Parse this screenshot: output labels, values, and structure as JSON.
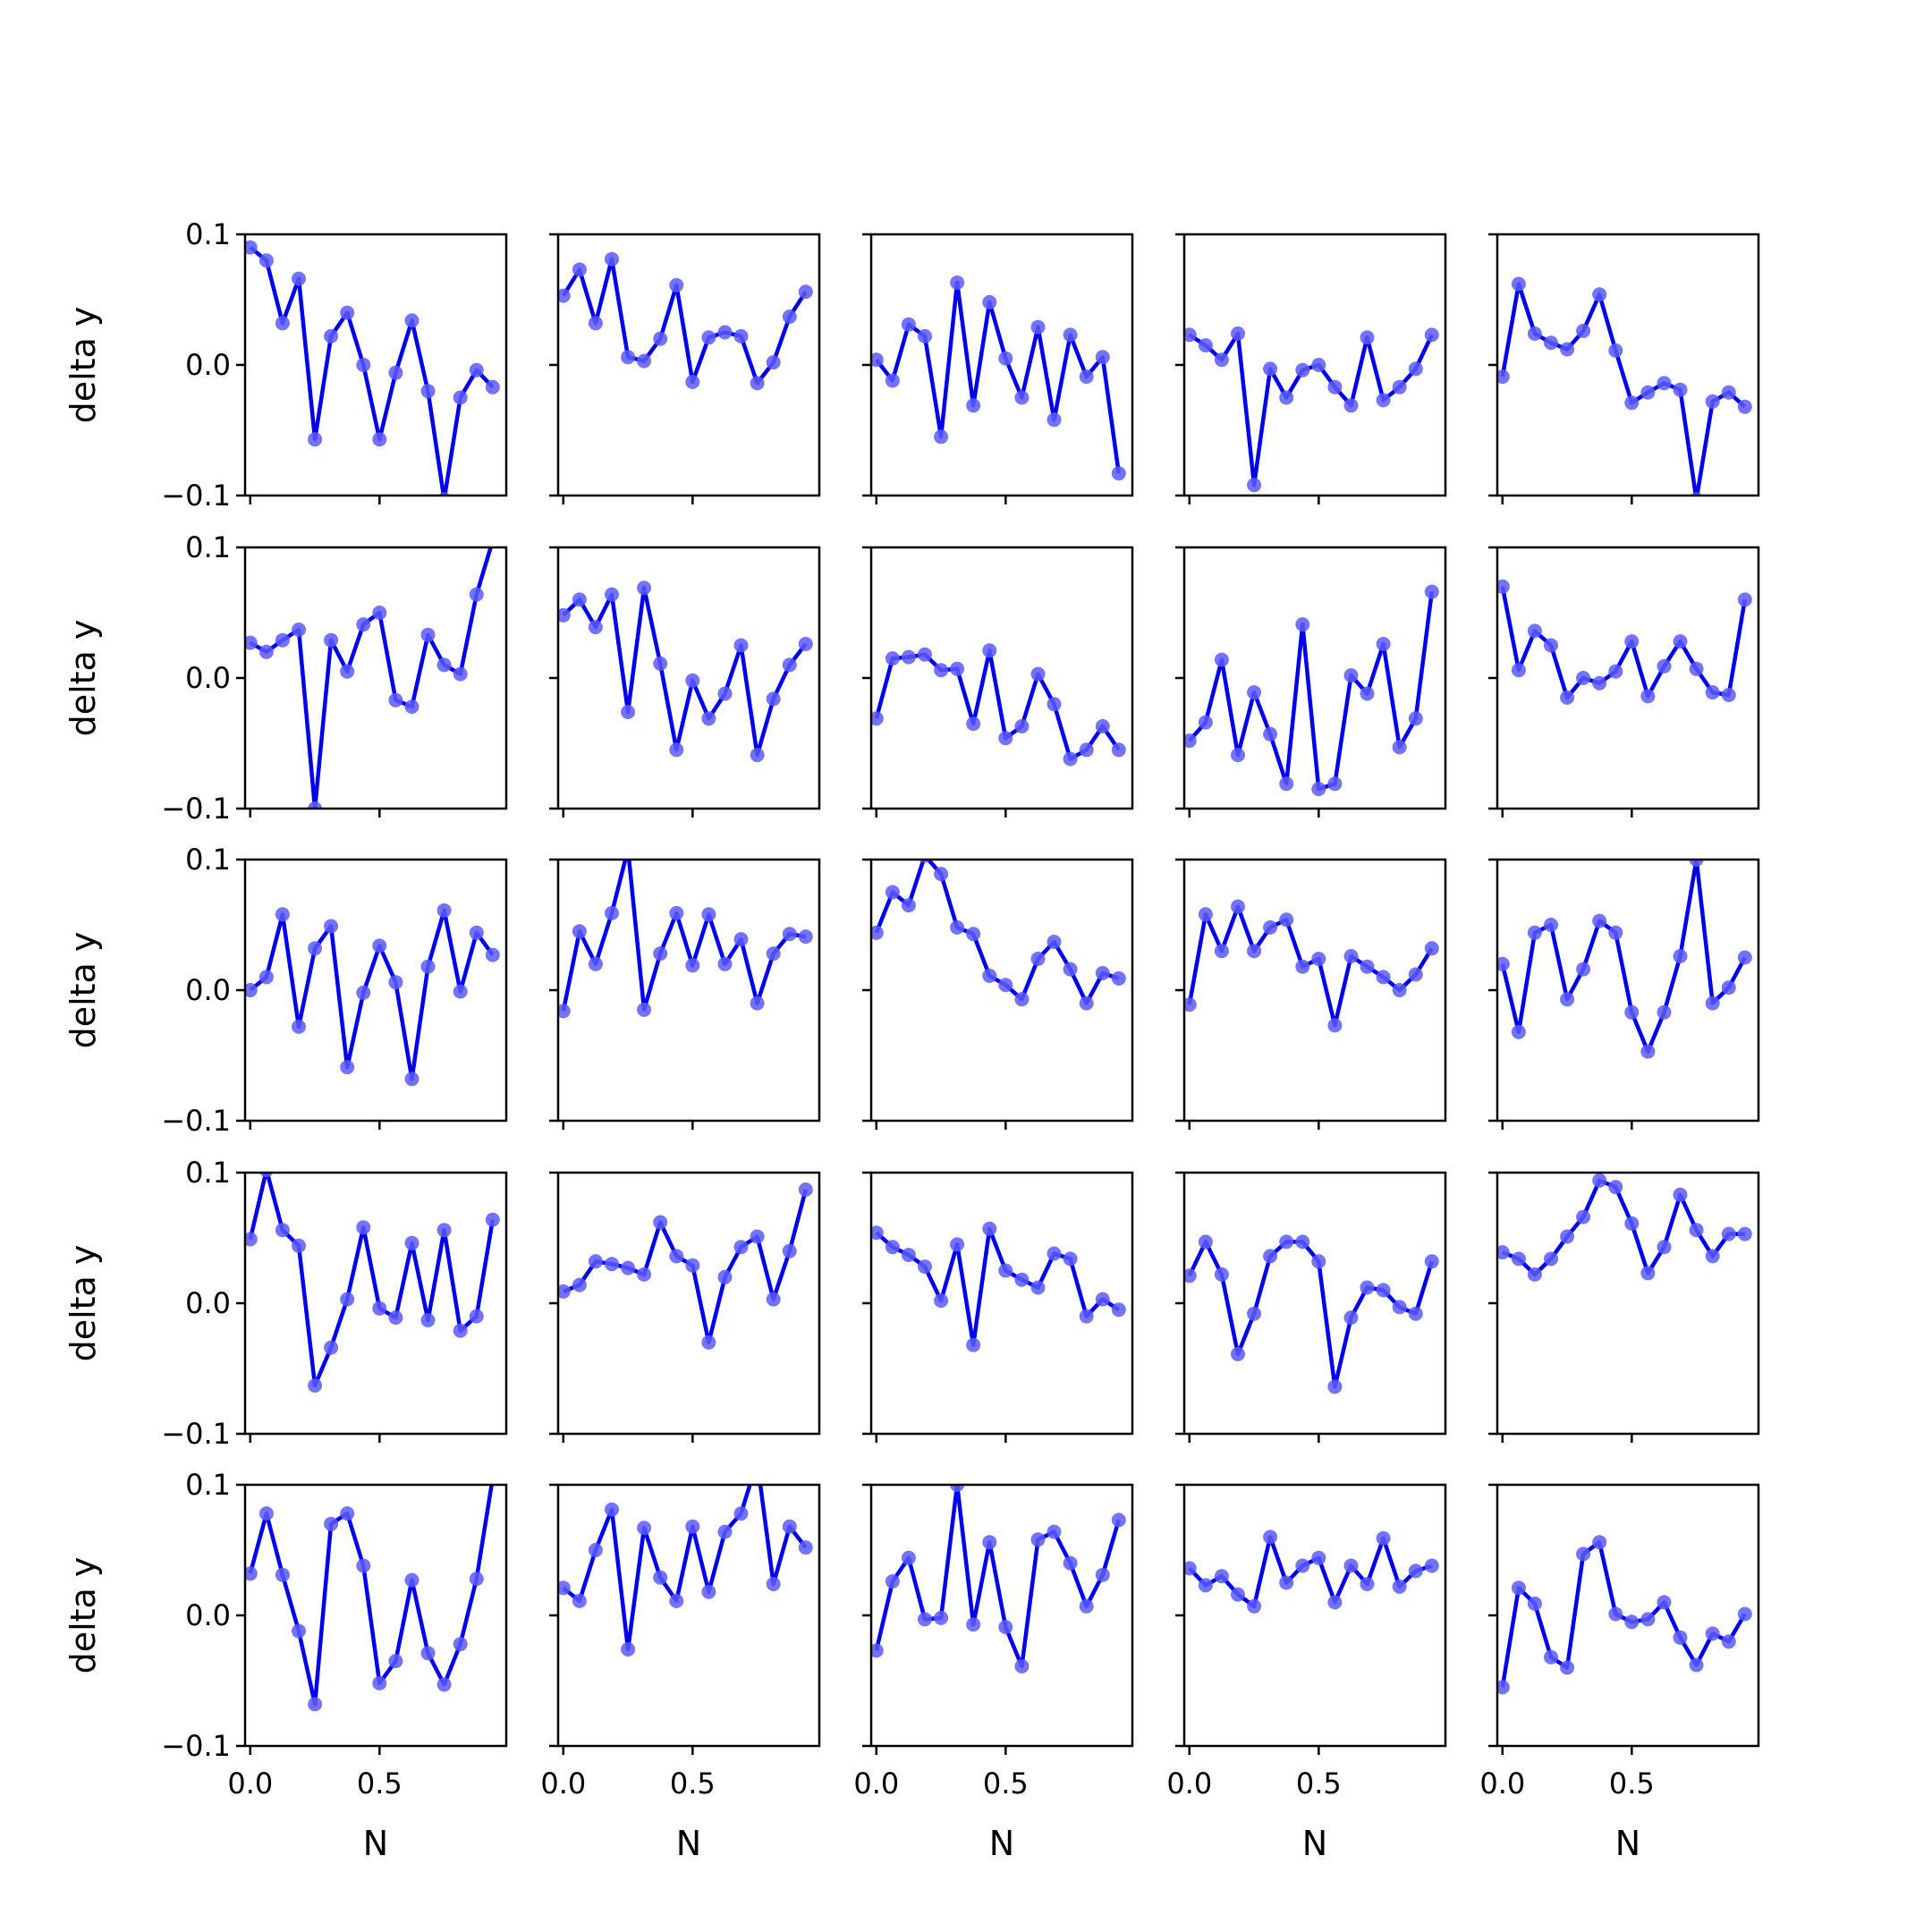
{
  "chart_data": {
    "type": "line",
    "layout": {
      "rows": 5,
      "cols": 5
    },
    "xlabel": "N",
    "ylabel": "delta y",
    "xlim": [
      -0.02,
      0.99
    ],
    "ylim": [
      -0.1,
      0.1
    ],
    "xticks": [
      0.0,
      0.5
    ],
    "xtick_labels": [
      "0.0",
      "0.5"
    ],
    "yticks": [
      -0.1,
      0.0,
      0.1
    ],
    "ytick_labels": [
      "−0.1",
      "0.0",
      "0.1"
    ],
    "grid": false,
    "line_color": "#0000ee",
    "marker_color": "#5a5aff",
    "x": [
      0.0,
      0.0625,
      0.125,
      0.1875,
      0.25,
      0.3125,
      0.375,
      0.4375,
      0.5,
      0.5625,
      0.625,
      0.6875,
      0.75,
      0.8125,
      0.875,
      0.9375
    ],
    "panels": [
      {
        "values": [
          0.09,
          0.08,
          0.032,
          0.066,
          -0.057,
          0.022,
          0.04,
          0.0,
          -0.057,
          -0.006,
          0.034,
          -0.02,
          -0.103,
          -0.025,
          -0.004,
          -0.017
        ]
      },
      {
        "values": [
          0.053,
          0.073,
          0.032,
          0.081,
          0.006,
          0.003,
          0.02,
          0.061,
          -0.013,
          0.021,
          0.025,
          0.022,
          -0.014,
          0.002,
          0.037,
          0.056
        ]
      },
      {
        "values": [
          0.004,
          -0.012,
          0.031,
          0.022,
          -0.055,
          0.063,
          -0.031,
          0.048,
          0.005,
          -0.025,
          0.029,
          -0.042,
          0.023,
          -0.009,
          0.006,
          -0.083
        ]
      },
      {
        "values": [
          0.023,
          0.015,
          0.004,
          0.024,
          -0.092,
          -0.003,
          -0.025,
          -0.004,
          0.0,
          -0.017,
          -0.031,
          0.021,
          -0.027,
          -0.017,
          -0.003,
          0.023
        ]
      },
      {
        "values": [
          -0.009,
          0.062,
          0.024,
          0.017,
          0.012,
          0.026,
          0.054,
          0.011,
          -0.029,
          -0.021,
          -0.014,
          -0.019,
          -0.103,
          -0.028,
          -0.021,
          -0.032
        ]
      },
      {
        "values": [
          0.027,
          0.02,
          0.029,
          0.037,
          -0.1,
          0.029,
          0.005,
          0.041,
          0.05,
          -0.017,
          -0.022,
          0.033,
          0.01,
          0.003,
          0.064,
          0.105
        ]
      },
      {
        "values": [
          0.048,
          0.06,
          0.039,
          0.064,
          -0.026,
          0.069,
          0.011,
          -0.055,
          -0.002,
          -0.031,
          -0.012,
          0.025,
          -0.059,
          -0.016,
          0.01,
          0.026
        ]
      },
      {
        "values": [
          -0.031,
          0.015,
          0.016,
          0.018,
          0.006,
          0.007,
          -0.035,
          0.021,
          -0.046,
          -0.037,
          0.003,
          -0.02,
          -0.062,
          -0.055,
          -0.037,
          -0.055
        ]
      },
      {
        "values": [
          -0.048,
          -0.034,
          0.014,
          -0.059,
          -0.011,
          -0.043,
          -0.081,
          0.041,
          -0.085,
          -0.081,
          0.002,
          -0.012,
          0.026,
          -0.053,
          -0.031,
          0.066
        ]
      },
      {
        "values": [
          0.07,
          0.006,
          0.036,
          0.025,
          -0.015,
          0.0,
          -0.004,
          0.005,
          0.028,
          -0.014,
          0.009,
          0.028,
          0.007,
          -0.011,
          -0.013,
          0.06
        ]
      },
      {
        "values": [
          0.0,
          0.01,
          0.058,
          -0.028,
          0.032,
          0.049,
          -0.059,
          -0.002,
          0.034,
          0.006,
          -0.068,
          0.018,
          0.061,
          -0.001,
          0.044,
          0.027
        ]
      },
      {
        "values": [
          -0.016,
          0.045,
          0.02,
          0.059,
          0.108,
          -0.015,
          0.028,
          0.059,
          0.019,
          0.058,
          0.02,
          0.039,
          -0.01,
          0.028,
          0.043,
          0.041
        ]
      },
      {
        "values": [
          0.044,
          0.075,
          0.065,
          0.103,
          0.089,
          0.048,
          0.043,
          0.011,
          0.004,
          -0.007,
          0.024,
          0.037,
          0.016,
          -0.01,
          0.013,
          0.009
        ]
      },
      {
        "values": [
          -0.011,
          0.058,
          0.03,
          0.064,
          0.03,
          0.048,
          0.054,
          0.018,
          0.024,
          -0.027,
          0.026,
          0.018,
          0.01,
          0.0,
          0.012,
          0.032
        ]
      },
      {
        "values": [
          0.02,
          -0.032,
          0.044,
          0.05,
          -0.007,
          0.016,
          0.053,
          0.044,
          -0.017,
          -0.047,
          -0.017,
          0.026,
          0.1,
          -0.01,
          0.002,
          0.025
        ]
      },
      {
        "values": [
          0.049,
          0.102,
          0.056,
          0.044,
          -0.063,
          -0.034,
          0.003,
          0.058,
          -0.004,
          -0.011,
          0.046,
          -0.013,
          0.056,
          -0.021,
          -0.01,
          0.064
        ]
      },
      {
        "values": [
          0.009,
          0.014,
          0.032,
          0.03,
          0.027,
          0.022,
          0.062,
          0.036,
          0.029,
          -0.03,
          0.02,
          0.043,
          0.051,
          0.003,
          0.04,
          0.087
        ]
      },
      {
        "values": [
          0.054,
          0.043,
          0.037,
          0.028,
          0.002,
          0.045,
          -0.032,
          0.057,
          0.025,
          0.018,
          0.012,
          0.038,
          0.034,
          -0.01,
          0.003,
          -0.005
        ]
      },
      {
        "values": [
          0.021,
          0.047,
          0.022,
          -0.039,
          -0.008,
          0.036,
          0.047,
          0.047,
          0.032,
          -0.064,
          -0.011,
          0.012,
          0.01,
          -0.003,
          -0.008,
          0.032
        ]
      },
      {
        "values": [
          0.039,
          0.034,
          0.022,
          0.034,
          0.051,
          0.066,
          0.094,
          0.089,
          0.061,
          0.023,
          0.043,
          0.083,
          0.056,
          0.036,
          0.053,
          0.053
        ]
      },
      {
        "values": [
          0.032,
          0.078,
          0.031,
          -0.012,
          -0.068,
          0.07,
          0.078,
          0.038,
          -0.052,
          -0.035,
          0.027,
          -0.029,
          -0.053,
          -0.022,
          0.028,
          0.105
        ]
      },
      {
        "values": [
          0.021,
          0.011,
          0.05,
          0.081,
          -0.026,
          0.067,
          0.029,
          0.011,
          0.068,
          0.018,
          0.064,
          0.078,
          0.118,
          0.024,
          0.068,
          0.052
        ]
      },
      {
        "values": [
          -0.027,
          0.026,
          0.044,
          -0.003,
          -0.002,
          0.1,
          -0.007,
          0.056,
          -0.009,
          -0.039,
          0.058,
          0.064,
          0.04,
          0.007,
          0.031,
          0.073
        ]
      },
      {
        "values": [
          0.036,
          0.023,
          0.03,
          0.016,
          0.007,
          0.06,
          0.025,
          0.038,
          0.044,
          0.01,
          0.038,
          0.024,
          0.059,
          0.022,
          0.034,
          0.038
        ]
      },
      {
        "values": [
          -0.055,
          0.021,
          0.009,
          -0.032,
          -0.04,
          0.047,
          0.056,
          0.001,
          -0.005,
          -0.003,
          0.01,
          -0.017,
          -0.038,
          -0.014,
          -0.02,
          0.001
        ]
      }
    ]
  }
}
